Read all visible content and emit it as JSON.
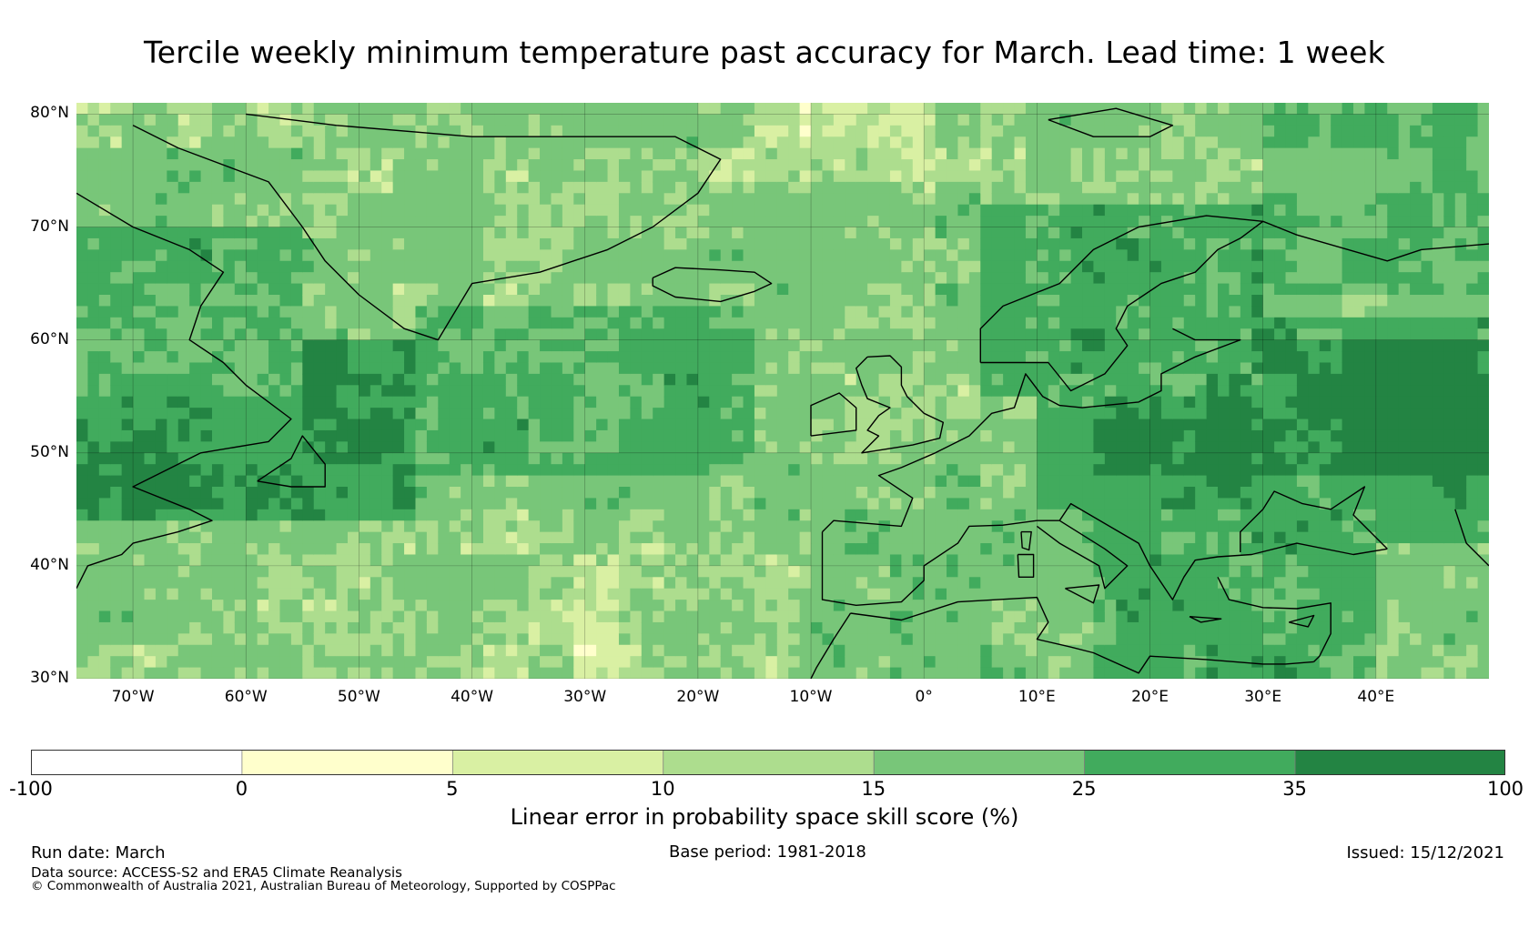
{
  "title": "Tercile weekly minimum temperature past accuracy for March. Lead time: 1 week",
  "map": {
    "region": "North Atlantic and Europe",
    "lon_range": [
      -75,
      50
    ],
    "lat_range": [
      30,
      81
    ],
    "lat_labels": [
      "30°N",
      "40°N",
      "50°N",
      "60°N",
      "70°N",
      "80°N"
    ],
    "lat_values": [
      30,
      40,
      50,
      60,
      70,
      80
    ],
    "lon_labels": [
      "70°W",
      "60°W",
      "50°W",
      "40°W",
      "30°W",
      "20°W",
      "10°W",
      "0°",
      "10°E",
      "20°E",
      "30°E",
      "40°E"
    ],
    "lon_values": [
      -70,
      -60,
      -50,
      -40,
      -30,
      -20,
      -10,
      0,
      10,
      20,
      30,
      40
    ]
  },
  "colorbar": {
    "ticks": [
      "-100",
      "0",
      "5",
      "10",
      "15",
      "25",
      "35",
      "100"
    ],
    "colors": [
      "#ffffff",
      "#ffffcc",
      "#d9f0a3",
      "#addd8e",
      "#78c679",
      "#41ab5d",
      "#238443"
    ],
    "label": "Linear error in probability space skill score (%)"
  },
  "footer": {
    "run_date": "Run date: March",
    "base_period": "Base period: 1981-2018",
    "issued": "Issued: 15/12/2021",
    "data_source": "Data source: ACCESS-S2 and ERA5 Climate Reanalysis",
    "copyright": "© Commonwealth of Australia 2021, Australian Bureau of Meteorology, Supported by COSPPac"
  }
}
